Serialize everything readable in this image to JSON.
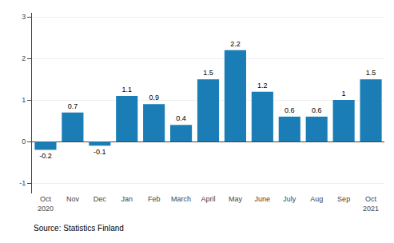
{
  "chart_data": {
    "type": "bar",
    "categories": [
      "Oct\n2020",
      "Nov",
      "Dec",
      "Jan",
      "Feb",
      "March",
      "April",
      "May",
      "June",
      "July",
      "Aug",
      "Sep",
      "Oct\n2021"
    ],
    "values": [
      -0.2,
      0.7,
      -0.1,
      1.1,
      0.9,
      0.4,
      1.5,
      2.2,
      1.2,
      0.6,
      0.6,
      1.0,
      1.5
    ],
    "color": "#1a7db5",
    "ylim": [
      -1.25,
      3.1
    ],
    "yticks": [
      -1,
      0,
      1,
      2,
      3
    ],
    "grid": true,
    "data_labels": true,
    "annotations": [
      "Source: Statistics Finland"
    ]
  }
}
